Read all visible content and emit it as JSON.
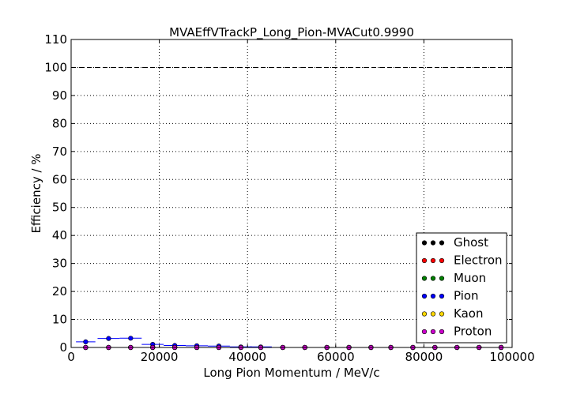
{
  "chart_data": {
    "type": "scatter",
    "title": "MVAEffVTrackP_Long_Pion-MVACut0.9990",
    "xlabel": "Long Pion Momentum / MeV/c",
    "ylabel": "Efficiency / %",
    "xlim": [
      0,
      100000
    ],
    "ylim": [
      0,
      110
    ],
    "x_ticks": [
      "0",
      "20000",
      "40000",
      "60000",
      "80000",
      "100000"
    ],
    "y_ticks": [
      "0",
      "10",
      "20",
      "30",
      "40",
      "50",
      "60",
      "70",
      "80",
      "90",
      "100",
      "110"
    ],
    "grid": true,
    "legend_position": "bottom-right",
    "reference_line": 100,
    "colors": {
      "Ghost": "#000000",
      "Electron": "#ff0000",
      "Muon": "#008000",
      "Pion": "#0000ff",
      "Kaon": "#ffd700",
      "Proton": "#cc00cc"
    },
    "x": [
      3300,
      8500,
      13500,
      18500,
      23500,
      28500,
      33500,
      38500,
      43000,
      48000,
      53000,
      58000,
      63000,
      68000,
      72500,
      77500,
      82500,
      87500,
      92500,
      97500
    ],
    "xerr": [
      2200,
      2500,
      2500,
      2500,
      2500,
      2500,
      2500,
      2500,
      2500,
      2500,
      2500,
      2500,
      2500,
      2500,
      2500,
      2500,
      2500,
      2500,
      2500,
      2500
    ],
    "series": [
      {
        "name": "Ghost",
        "values": [
          0,
          0,
          0,
          0,
          0,
          0,
          0,
          0,
          0,
          0,
          0,
          0,
          0,
          0,
          0,
          0,
          0,
          0,
          0,
          0
        ]
      },
      {
        "name": "Electron",
        "values": [
          0,
          0,
          0,
          0,
          0,
          0,
          0,
          0,
          0,
          0,
          0,
          0,
          0,
          0,
          0,
          0,
          0,
          0,
          0,
          0
        ]
      },
      {
        "name": "Muon",
        "values": [
          0,
          0,
          0,
          0,
          0,
          0,
          0,
          0,
          0,
          0,
          0,
          0,
          0,
          0,
          0,
          0,
          0,
          0,
          0,
          0
        ]
      },
      {
        "name": "Pion",
        "values": [
          2.0,
          3.2,
          3.3,
          1.1,
          0.7,
          0.6,
          0.5,
          0.2,
          0.2,
          0,
          0,
          0,
          0,
          0,
          0,
          0,
          0,
          0,
          0,
          0
        ]
      },
      {
        "name": "Kaon",
        "values": [
          0,
          0,
          0,
          0,
          0,
          0,
          0,
          0,
          0,
          0,
          0,
          0,
          0,
          0,
          0,
          0,
          0,
          0,
          0,
          0
        ]
      },
      {
        "name": "Proton",
        "values": [
          0,
          0,
          0,
          0,
          0,
          0,
          0,
          0,
          0,
          0,
          0,
          0,
          0,
          0,
          0,
          0,
          0,
          0,
          0,
          0
        ]
      }
    ]
  }
}
